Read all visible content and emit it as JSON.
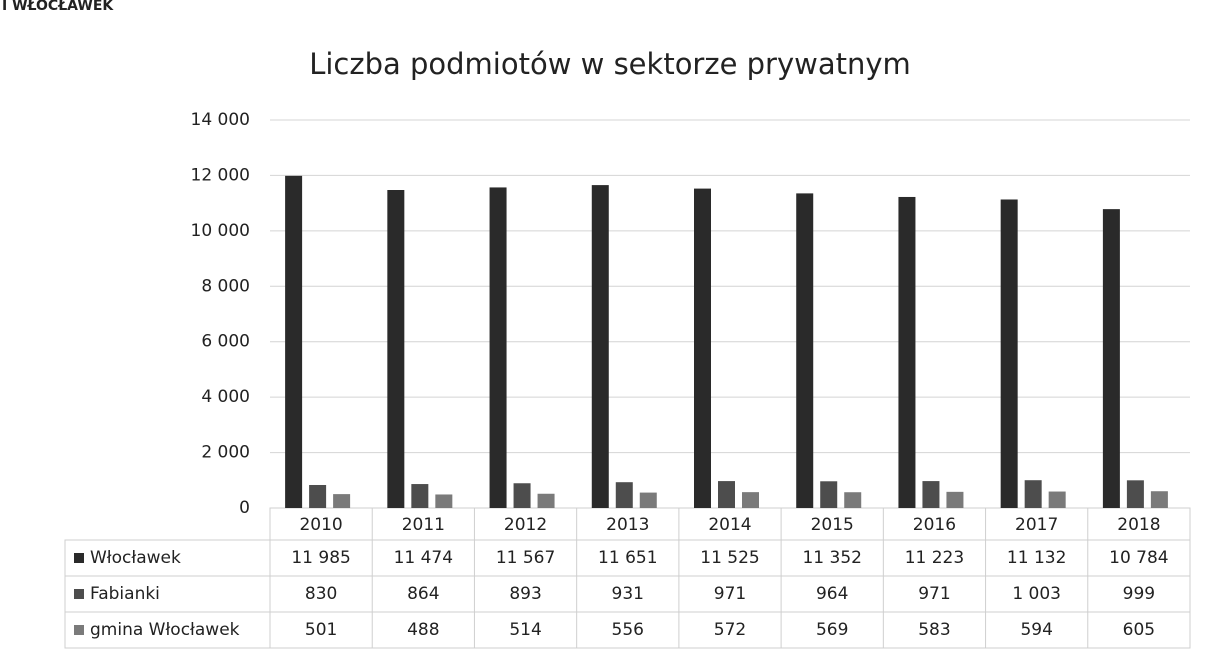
{
  "page_header": "I WŁOCŁAWEK",
  "chart_data": {
    "type": "bar",
    "title": "Liczba podmiotów w sektorze prywatnym",
    "categories": [
      "2010",
      "2011",
      "2012",
      "2013",
      "2014",
      "2015",
      "2016",
      "2017",
      "2018"
    ],
    "series": [
      {
        "name": "Włocławek",
        "color": "#2a2a2a",
        "values": [
          11985,
          11474,
          11567,
          11651,
          11525,
          11352,
          11223,
          11132,
          10784
        ],
        "value_labels": [
          "11 985",
          "11 474",
          "11 567",
          "11 651",
          "11 525",
          "11 352",
          "11 223",
          "11 132",
          "10 784"
        ]
      },
      {
        "name": "Fabianki",
        "color": "#4d4d4d",
        "values": [
          830,
          864,
          893,
          931,
          971,
          964,
          971,
          1003,
          999
        ],
        "value_labels": [
          "830",
          "864",
          "893",
          "931",
          "971",
          "964",
          "971",
          "1 003",
          "999"
        ]
      },
      {
        "name": "gmina Włocławek",
        "color": "#7a7a7a",
        "values": [
          501,
          488,
          514,
          556,
          572,
          569,
          583,
          594,
          605
        ],
        "value_labels": [
          "501",
          "488",
          "514",
          "556",
          "572",
          "569",
          "583",
          "594",
          "605"
        ]
      }
    ],
    "ylim": [
      0,
      14000
    ],
    "yticks": [
      0,
      {
        "value": 2000,
        "label": "2 000"
      },
      {
        "value": 4000,
        "label": "4 000"
      },
      {
        "value": 6000,
        "label": "6 000"
      },
      {
        "value": 8000,
        "label": "8 000"
      },
      {
        "value": 10000,
        "label": "10 000"
      },
      {
        "value": 12000,
        "label": "12 000"
      },
      {
        "value": 14000,
        "label": "14 000"
      }
    ],
    "grid": true
  }
}
